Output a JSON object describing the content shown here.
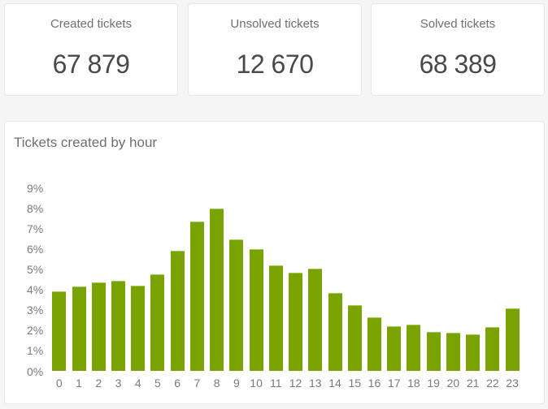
{
  "stats": [
    {
      "label": "Created tickets",
      "value": "67 879"
    },
    {
      "label": "Unsolved tickets",
      "value": "12 670"
    },
    {
      "label": "Solved tickets",
      "value": "68 389"
    }
  ],
  "chart": {
    "title": "Tickets created by hour",
    "bar_color": "#78a300"
  },
  "chart_data": {
    "type": "bar",
    "title": "Tickets created by hour",
    "xlabel": "",
    "ylabel": "",
    "categories": [
      "0",
      "1",
      "2",
      "3",
      "4",
      "5",
      "6",
      "7",
      "8",
      "9",
      "10",
      "11",
      "12",
      "13",
      "14",
      "15",
      "16",
      "17",
      "18",
      "19",
      "20",
      "21",
      "22",
      "23"
    ],
    "values": [
      3.91,
      4.15,
      4.37,
      4.45,
      4.21,
      4.75,
      5.92,
      7.34,
      7.97,
      6.46,
      6.0,
      5.2,
      4.86,
      5.04,
      3.84,
      3.24,
      2.65,
      2.21,
      2.29,
      1.92,
      1.89,
      1.82,
      2.16,
      3.07
    ],
    "unit": "%",
    "ylim": [
      0,
      9
    ],
    "yticks": [
      "0%",
      "1%",
      "2%",
      "3%",
      "4%",
      "5%",
      "6%",
      "7%",
      "8%",
      "9%"
    ],
    "grid": false,
    "legend": null,
    "color": "#78a300"
  }
}
